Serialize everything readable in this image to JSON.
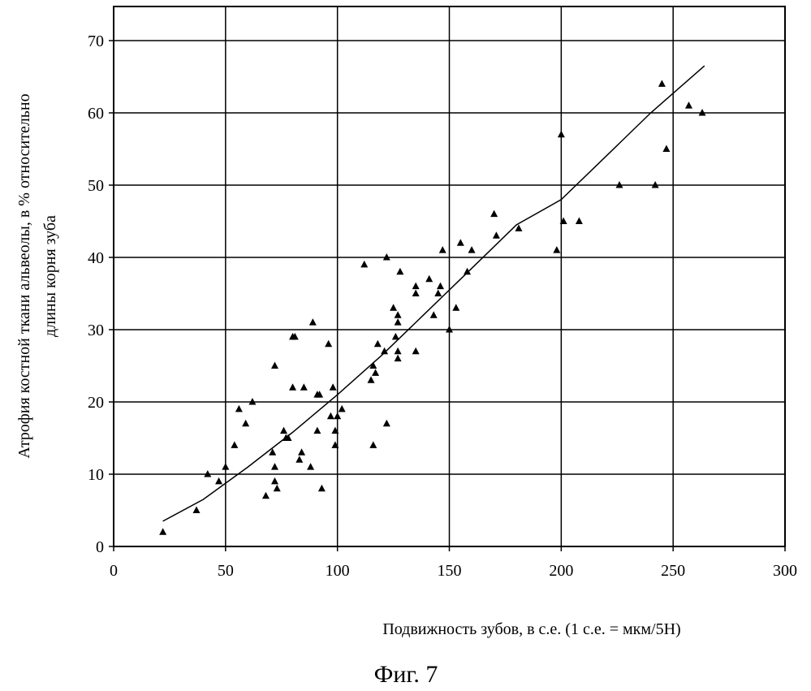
{
  "chart_data": {
    "type": "scatter",
    "title": "",
    "xlabel": "Подвижность зубов, в с.е. (1 с.е. = мкм/5Н)",
    "ylabel_line1": "Атрофия костной ткани альвеолы, в % относительно",
    "ylabel_line2": "длины корня зуба",
    "xlim": [
      0,
      300
    ],
    "ylim": [
      0,
      75
    ],
    "xticks": [
      0,
      50,
      100,
      150,
      200,
      250,
      300
    ],
    "yticks": [
      0,
      10,
      20,
      30,
      40,
      50,
      60,
      70
    ],
    "grid": true,
    "marker": "triangle",
    "points": [
      [
        22,
        2
      ],
      [
        37,
        5
      ],
      [
        42,
        10
      ],
      [
        47,
        9
      ],
      [
        50,
        11
      ],
      [
        54,
        14
      ],
      [
        56,
        19
      ],
      [
        59,
        17
      ],
      [
        62,
        20
      ],
      [
        68,
        7
      ],
      [
        71,
        13
      ],
      [
        72,
        9
      ],
      [
        72,
        11
      ],
      [
        72,
        25
      ],
      [
        73,
        8
      ],
      [
        76,
        16
      ],
      [
        77,
        15
      ],
      [
        78,
        15
      ],
      [
        80,
        29
      ],
      [
        80,
        22
      ],
      [
        81,
        29
      ],
      [
        83,
        12
      ],
      [
        84,
        13
      ],
      [
        85,
        22
      ],
      [
        88,
        11
      ],
      [
        89,
        31
      ],
      [
        91,
        21
      ],
      [
        91,
        16
      ],
      [
        92,
        21
      ],
      [
        93,
        8
      ],
      [
        96,
        28
      ],
      [
        97,
        18
      ],
      [
        98,
        22
      ],
      [
        99,
        14
      ],
      [
        99,
        16
      ],
      [
        100,
        18
      ],
      [
        102,
        19
      ],
      [
        112,
        39
      ],
      [
        115,
        23
      ],
      [
        116,
        25
      ],
      [
        116,
        14
      ],
      [
        117,
        24
      ],
      [
        118,
        28
      ],
      [
        121,
        27
      ],
      [
        122,
        17
      ],
      [
        122,
        40
      ],
      [
        125,
        33
      ],
      [
        126,
        29
      ],
      [
        127,
        26
      ],
      [
        127,
        27
      ],
      [
        127,
        31
      ],
      [
        127,
        32
      ],
      [
        128,
        38
      ],
      [
        135,
        35
      ],
      [
        135,
        36
      ],
      [
        135,
        27
      ],
      [
        141,
        37
      ],
      [
        143,
        32
      ],
      [
        145,
        35
      ],
      [
        146,
        36
      ],
      [
        147,
        41
      ],
      [
        150,
        30
      ],
      [
        153,
        33
      ],
      [
        155,
        42
      ],
      [
        158,
        38
      ],
      [
        160,
        41
      ],
      [
        170,
        46
      ],
      [
        171,
        43
      ],
      [
        181,
        44
      ],
      [
        198,
        41
      ],
      [
        200,
        57
      ],
      [
        201,
        45
      ],
      [
        208,
        45
      ],
      [
        226,
        50
      ],
      [
        242,
        50
      ],
      [
        245,
        64
      ],
      [
        247,
        55
      ],
      [
        257,
        61
      ],
      [
        263,
        60
      ]
    ],
    "trendline": [
      [
        22,
        3.5
      ],
      [
        40,
        6.5
      ],
      [
        60,
        11
      ],
      [
        80,
        15.8
      ],
      [
        100,
        21
      ],
      [
        120,
        26.5
      ],
      [
        140,
        32.5
      ],
      [
        160,
        38.5
      ],
      [
        180,
        44.5
      ],
      [
        200,
        48
      ],
      [
        220,
        54
      ],
      [
        240,
        60
      ],
      [
        264,
        66.5
      ]
    ]
  },
  "figure_caption": "Фиг. 7",
  "colors": {
    "ink": "#000000",
    "background": "#ffffff"
  }
}
